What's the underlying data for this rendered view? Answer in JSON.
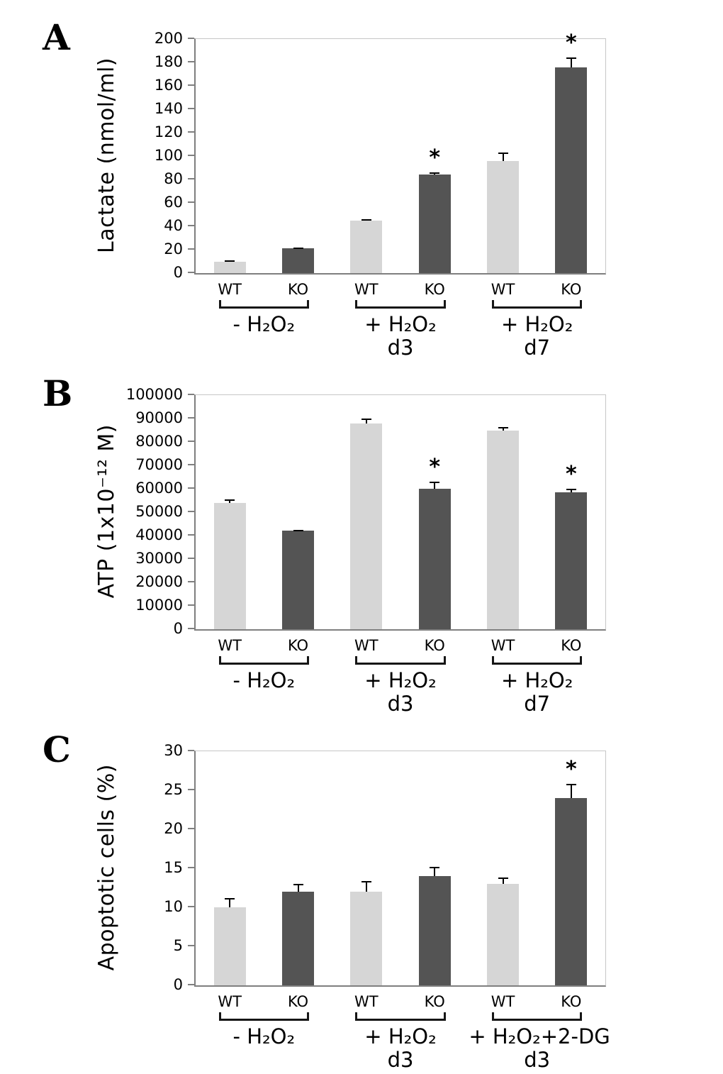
{
  "sig_marker": "*",
  "chart_data": [
    {
      "type": "bar",
      "panel": "A",
      "ylabel": "Lactate (nmol/ml)",
      "ylim": [
        0,
        200
      ],
      "ytick_step": 20,
      "grid": false,
      "legend": "none",
      "series": [
        "WT",
        "KO"
      ],
      "series_colors": {
        "WT": "#d6d6d6",
        "KO": "#545454"
      },
      "groups": [
        {
          "label": "- H₂O₂",
          "sublabel": "",
          "bars": [
            {
              "series": "WT",
              "value": 10,
              "err": 1,
              "sig": false
            },
            {
              "series": "KO",
              "value": 21,
              "err": 1,
              "sig": false
            }
          ]
        },
        {
          "label": "+ H₂O₂",
          "sublabel": "d3",
          "bars": [
            {
              "series": "WT",
              "value": 45,
              "err": 1,
              "sig": false
            },
            {
              "series": "KO",
              "value": 84,
              "err": 2,
              "sig": true
            }
          ]
        },
        {
          "label": "+ H₂O₂",
          "sublabel": "d7",
          "bars": [
            {
              "series": "WT",
              "value": 96,
              "err": 7,
              "sig": false
            },
            {
              "series": "KO",
              "value": 176,
              "err": 8,
              "sig": true
            }
          ]
        }
      ]
    },
    {
      "type": "bar",
      "panel": "B",
      "ylabel": "ATP (1x10⁻¹² M)",
      "ylim": [
        0,
        100000
      ],
      "ytick_step": 10000,
      "grid": false,
      "legend": "none",
      "series": [
        "WT",
        "KO"
      ],
      "series_colors": {
        "WT": "#d6d6d6",
        "KO": "#545454"
      },
      "groups": [
        {
          "label": "- H₂O₂",
          "sublabel": "",
          "bars": [
            {
              "series": "WT",
              "value": 54000,
              "err": 1500,
              "sig": false
            },
            {
              "series": "KO",
              "value": 42000,
              "err": 500,
              "sig": false
            }
          ]
        },
        {
          "label": "+ H₂O₂",
          "sublabel": "d3",
          "bars": [
            {
              "series": "WT",
              "value": 88000,
              "err": 2000,
              "sig": false
            },
            {
              "series": "KO",
              "value": 60000,
              "err": 3000,
              "sig": true
            }
          ]
        },
        {
          "label": "+ H₂O₂",
          "sublabel": "d7",
          "bars": [
            {
              "series": "WT",
              "value": 85000,
              "err": 1500,
              "sig": false
            },
            {
              "series": "KO",
              "value": 58500,
              "err": 1500,
              "sig": true
            }
          ]
        }
      ]
    },
    {
      "type": "bar",
      "panel": "C",
      "ylabel": "Apoptotic cells (%)",
      "ylim": [
        0,
        30
      ],
      "ytick_step": 5,
      "grid": false,
      "legend": "none",
      "series": [
        "WT",
        "KO"
      ],
      "series_colors": {
        "WT": "#d6d6d6",
        "KO": "#545454"
      },
      "groups": [
        {
          "label": "- H₂O₂",
          "sublabel": "",
          "bars": [
            {
              "series": "WT",
              "value": 10,
              "err": 1.2,
              "sig": false
            },
            {
              "series": "KO",
              "value": 12,
              "err": 1,
              "sig": false
            }
          ]
        },
        {
          "label": "+ H₂O₂",
          "sublabel": "d3",
          "bars": [
            {
              "series": "WT",
              "value": 12,
              "err": 1.4,
              "sig": false
            },
            {
              "series": "KO",
              "value": 14,
              "err": 1.2,
              "sig": false
            }
          ]
        },
        {
          "label": "+ H₂O₂+2-DG",
          "sublabel": "d3",
          "bars": [
            {
              "series": "WT",
              "value": 13,
              "err": 0.8,
              "sig": false
            },
            {
              "series": "KO",
              "value": 24,
              "err": 1.8,
              "sig": true
            }
          ]
        }
      ]
    }
  ]
}
